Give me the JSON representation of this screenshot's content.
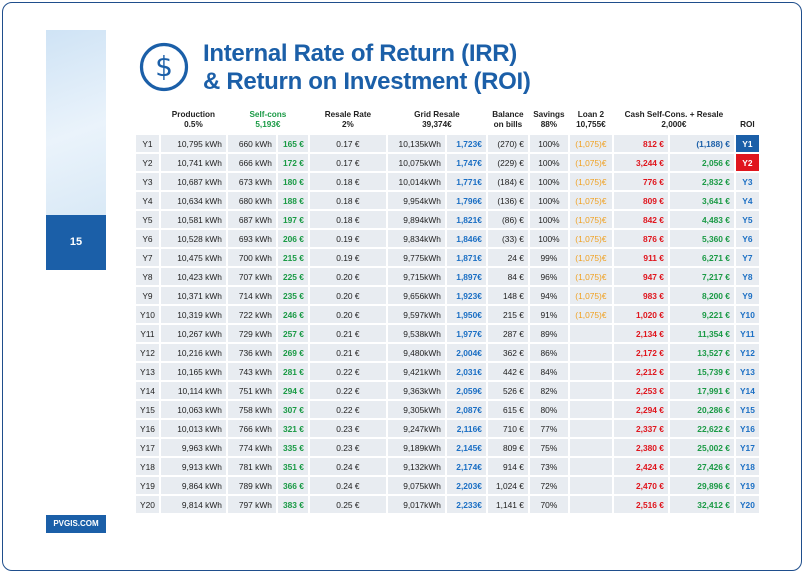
{
  "page": {
    "number": "15",
    "brand": "PVGIS.COM"
  },
  "title": {
    "line1": "Internal Rate of Return (IRR)",
    "line2": "& Return on Investment (ROI)"
  },
  "headers": {
    "production": "Production",
    "production_sub": "0.5%",
    "selfcons": "Self-cons",
    "selfcons_sub": "5,193€",
    "resale_rate": "Resale Rate",
    "resale_rate_sub": "2%",
    "grid": "Grid Resale",
    "grid_sub": "39,374€",
    "balance": "Balance",
    "balance_sub": "on bills",
    "savings": "Savings",
    "savings_sub": "88%",
    "loan": "Loan 2",
    "loan_sub": "10,755€",
    "cash": "Cash Self-Cons. + Resale",
    "cash_sub": "2,000€",
    "roi": "ROI"
  },
  "rows": [
    {
      "y": "Y1",
      "prod": "10,795 kWh",
      "sckwh": "660 kWh",
      "sceur": "165 €",
      "rate": "0.17 €",
      "grkwh": "10,135kWh",
      "greur": "1,723€",
      "bal": "(270) €",
      "sav": "100%",
      "loan": "(1,075)€",
      "cash": "812 €",
      "resale": "(1,188) €",
      "roi": "Y1"
    },
    {
      "y": "Y2",
      "prod": "10,741 kWh",
      "sckwh": "666 kWh",
      "sceur": "172 €",
      "rate": "0.17 €",
      "grkwh": "10,075kWh",
      "greur": "1,747€",
      "bal": "(229) €",
      "sav": "100%",
      "loan": "(1,075)€",
      "cash": "3,244 €",
      "resale": "2,056 €",
      "roi": "Y2"
    },
    {
      "y": "Y3",
      "prod": "10,687 kWh",
      "sckwh": "673 kWh",
      "sceur": "180 €",
      "rate": "0.18 €",
      "grkwh": "10,014kWh",
      "greur": "1,771€",
      "bal": "(184) €",
      "sav": "100%",
      "loan": "(1,075)€",
      "cash": "776 €",
      "resale": "2,832 €",
      "roi": "Y3"
    },
    {
      "y": "Y4",
      "prod": "10,634 kWh",
      "sckwh": "680 kWh",
      "sceur": "188 €",
      "rate": "0.18 €",
      "grkwh": "9,954kWh",
      "greur": "1,796€",
      "bal": "(136) €",
      "sav": "100%",
      "loan": "(1,075)€",
      "cash": "809 €",
      "resale": "3,641 €",
      "roi": "Y4"
    },
    {
      "y": "Y5",
      "prod": "10,581 kWh",
      "sckwh": "687 kWh",
      "sceur": "197 €",
      "rate": "0.18 €",
      "grkwh": "9,894kWh",
      "greur": "1,821€",
      "bal": "(86) €",
      "sav": "100%",
      "loan": "(1,075)€",
      "cash": "842 €",
      "resale": "4,483 €",
      "roi": "Y5"
    },
    {
      "y": "Y6",
      "prod": "10,528 kWh",
      "sckwh": "693 kWh",
      "sceur": "206 €",
      "rate": "0.19 €",
      "grkwh": "9,834kWh",
      "greur": "1,846€",
      "bal": "(33) €",
      "sav": "100%",
      "loan": "(1,075)€",
      "cash": "876 €",
      "resale": "5,360 €",
      "roi": "Y6"
    },
    {
      "y": "Y7",
      "prod": "10,475 kWh",
      "sckwh": "700 kWh",
      "sceur": "215 €",
      "rate": "0.19 €",
      "grkwh": "9,775kWh",
      "greur": "1,871€",
      "bal": "24 €",
      "sav": "99%",
      "loan": "(1,075)€",
      "cash": "911 €",
      "resale": "6,271 €",
      "roi": "Y7"
    },
    {
      "y": "Y8",
      "prod": "10,423 kWh",
      "sckwh": "707 kWh",
      "sceur": "225 €",
      "rate": "0.20 €",
      "grkwh": "9,715kWh",
      "greur": "1,897€",
      "bal": "84 €",
      "sav": "96%",
      "loan": "(1,075)€",
      "cash": "947 €",
      "resale": "7,217 €",
      "roi": "Y8"
    },
    {
      "y": "Y9",
      "prod": "10,371 kWh",
      "sckwh": "714 kWh",
      "sceur": "235 €",
      "rate": "0.20 €",
      "grkwh": "9,656kWh",
      "greur": "1,923€",
      "bal": "148 €",
      "sav": "94%",
      "loan": "(1,075)€",
      "cash": "983 €",
      "resale": "8,200 €",
      "roi": "Y9"
    },
    {
      "y": "Y10",
      "prod": "10,319 kWh",
      "sckwh": "722 kWh",
      "sceur": "246 €",
      "rate": "0.20 €",
      "grkwh": "9,597kWh",
      "greur": "1,950€",
      "bal": "215 €",
      "sav": "91%",
      "loan": "(1,075)€",
      "cash": "1,020 €",
      "resale": "9,221 €",
      "roi": "Y10"
    },
    {
      "y": "Y11",
      "prod": "10,267 kWh",
      "sckwh": "729 kWh",
      "sceur": "257 €",
      "rate": "0.21 €",
      "grkwh": "9,538kWh",
      "greur": "1,977€",
      "bal": "287 €",
      "sav": "89%",
      "loan": "",
      "cash": "2,134 €",
      "resale": "11,354 €",
      "roi": "Y11"
    },
    {
      "y": "Y12",
      "prod": "10,216 kWh",
      "sckwh": "736 kWh",
      "sceur": "269 €",
      "rate": "0.21 €",
      "grkwh": "9,480kWh",
      "greur": "2,004€",
      "bal": "362 €",
      "sav": "86%",
      "loan": "",
      "cash": "2,172 €",
      "resale": "13,527 €",
      "roi": "Y12"
    },
    {
      "y": "Y13",
      "prod": "10,165 kWh",
      "sckwh": "743 kWh",
      "sceur": "281 €",
      "rate": "0.22 €",
      "grkwh": "9,421kWh",
      "greur": "2,031€",
      "bal": "442 €",
      "sav": "84%",
      "loan": "",
      "cash": "2,212 €",
      "resale": "15,739 €",
      "roi": "Y13"
    },
    {
      "y": "Y14",
      "prod": "10,114 kWh",
      "sckwh": "751 kWh",
      "sceur": "294 €",
      "rate": "0.22 €",
      "grkwh": "9,363kWh",
      "greur": "2,059€",
      "bal": "526 €",
      "sav": "82%",
      "loan": "",
      "cash": "2,253 €",
      "resale": "17,991 €",
      "roi": "Y14"
    },
    {
      "y": "Y15",
      "prod": "10,063 kWh",
      "sckwh": "758 kWh",
      "sceur": "307 €",
      "rate": "0.22 €",
      "grkwh": "9,305kWh",
      "greur": "2,087€",
      "bal": "615 €",
      "sav": "80%",
      "loan": "",
      "cash": "2,294 €",
      "resale": "20,286 €",
      "roi": "Y15"
    },
    {
      "y": "Y16",
      "prod": "10,013 kWh",
      "sckwh": "766 kWh",
      "sceur": "321 €",
      "rate": "0.23 €",
      "grkwh": "9,247kWh",
      "greur": "2,116€",
      "bal": "710 €",
      "sav": "77%",
      "loan": "",
      "cash": "2,337 €",
      "resale": "22,622 €",
      "roi": "Y16"
    },
    {
      "y": "Y17",
      "prod": "9,963 kWh",
      "sckwh": "774 kWh",
      "sceur": "335 €",
      "rate": "0.23 €",
      "grkwh": "9,189kWh",
      "greur": "2,145€",
      "bal": "809 €",
      "sav": "75%",
      "loan": "",
      "cash": "2,380 €",
      "resale": "25,002 €",
      "roi": "Y17"
    },
    {
      "y": "Y18",
      "prod": "9,913 kWh",
      "sckwh": "781 kWh",
      "sceur": "351 €",
      "rate": "0.24 €",
      "grkwh": "9,132kWh",
      "greur": "2,174€",
      "bal": "914 €",
      "sav": "73%",
      "loan": "",
      "cash": "2,424 €",
      "resale": "27,426 €",
      "roi": "Y18"
    },
    {
      "y": "Y19",
      "prod": "9,864 kWh",
      "sckwh": "789 kWh",
      "sceur": "366 €",
      "rate": "0.24 €",
      "grkwh": "9,075kWh",
      "greur": "2,203€",
      "bal": "1,024 €",
      "sav": "72%",
      "loan": "",
      "cash": "2,470 €",
      "resale": "29,896 €",
      "roi": "Y19"
    },
    {
      "y": "Y20",
      "prod": "9,814 kWh",
      "sckwh": "797 kWh",
      "sceur": "383 €",
      "rate": "0.25 €",
      "grkwh": "9,017kWh",
      "greur": "2,233€",
      "bal": "1,141 €",
      "sav": "70%",
      "loan": "",
      "cash": "2,516 €",
      "resale": "32,412 €",
      "roi": "Y20"
    }
  ]
}
